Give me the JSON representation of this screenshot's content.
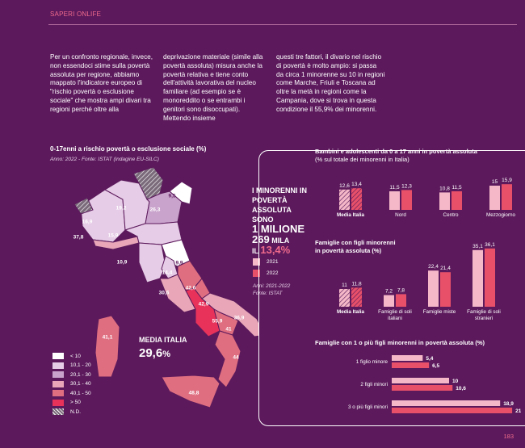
{
  "header": {
    "label": "SAPERI ONLIFE"
  },
  "intro": {
    "col1": "Per un confronto regionale, invece, non essendoci stime sulla povertà assoluta per regione, abbiamo mappato l'indicatore europeo di \"rischio povertà o esclusione sociale\" che mostra ampi divari tra regioni perché oltre alla",
    "col2": "deprivazione materiale (simile alla povertà assoluta) misura anche la povertà relativa e tiene conto dell'attività lavorativa del nucleo familiare (ad esempio se è monoreddito o se entrambi i genitori sono disoccupati). Mettendo insieme",
    "col3": "questi tre fattori, il divario nel rischio di povertà è molto ampio: si passa da circa 1 minorenne su 10 in regioni come Marche, Friuli e Toscana ad oltre la metà in regioni come la Campania, dove si trova in questa condizione il 55,9% dei minorenni."
  },
  "map": {
    "title": "0-17enni a rischio povertà o esclusione sociale (%)",
    "source": "Anno: 2022 - Fonte: ISTAT (indagine EU-SILC)",
    "media_label": "MEDIA ITALIA",
    "media_value": "29,6",
    "media_unit": "%",
    "region_values": [
      "9,5",
      "26,3",
      "19,2",
      "16,9",
      "37,8",
      "15,9",
      "10,9",
      "9,9",
      "14,4",
      "30,6",
      "42,6",
      "42,9",
      "55,9",
      "41",
      "36,9",
      "44",
      "41,1",
      "48,8"
    ],
    "colors": {
      "lt10": "#ffffff",
      "b10_20": "#e6cce6",
      "b20_30": "#c9a3cc",
      "b30_40": "#e8a6b8",
      "b40_50": "#df6e80",
      "gt50": "#e8325a",
      "nd": "#7a6a7a"
    }
  },
  "legend": [
    {
      "label": "< 10",
      "color": "#ffffff"
    },
    {
      "label": "10,1 - 20",
      "color": "#e6cce6"
    },
    {
      "label": "20,1 - 30",
      "color": "#c9a3cc"
    },
    {
      "label": "30,1 - 40",
      "color": "#e8a6b8"
    },
    {
      "label": "40,1 - 50",
      "color": "#df6e80"
    },
    {
      "label": "> 50",
      "color": "#e8325a"
    },
    {
      "label": "N.D.",
      "color": "#7a6a7a"
    }
  ],
  "callout": {
    "line1": "I MINORENNI IN",
    "line2": "POVERTÀ ASSOLUTA",
    "line3": "SONO",
    "line4_big": "1 MILIONE 269",
    "line4_small": "MILA",
    "line5": "IL",
    "line5_val": "13,4%",
    "year_2021": "2021",
    "year_2022": "2022",
    "source1": "Anni: 2021-2022",
    "source2": "Fonte: ISTAT"
  },
  "colors": {
    "y2021": "#f4b8c8",
    "y2022": "#e8506a"
  },
  "chart_data": [
    {
      "type": "bar",
      "title": "Bambini e adolescenti da 0 a 17 anni in povertà assoluta",
      "subtitle": "(% sul totale dei minorenni in Italia)",
      "categories": [
        "Media Italia",
        "Nord",
        "Centro",
        "Mezzogiorno"
      ],
      "series": [
        {
          "name": "2021",
          "values": [
            12.6,
            11.5,
            10.8,
            15.0
          ],
          "labels": [
            "12,6",
            "11,5",
            "10,8",
            "15"
          ]
        },
        {
          "name": "2022",
          "values": [
            13.4,
            12.3,
            11.5,
            15.9
          ],
          "labels": [
            "13,4",
            "12,3",
            "11,5",
            "15,9"
          ]
        }
      ]
    },
    {
      "type": "bar",
      "title": "Famiglie con figli minorenni",
      "subtitle": "in povertà assoluta (%)",
      "categories": [
        "Media Italia",
        "Famiglie di soli italiani",
        "Famiglie miste",
        "Famiglie di soli stranieri"
      ],
      "series": [
        {
          "name": "2021",
          "values": [
            11.0,
            7.2,
            22.4,
            35.1
          ],
          "labels": [
            "11",
            "7,2",
            "22,4",
            "35,1"
          ]
        },
        {
          "name": "2022",
          "values": [
            11.8,
            7.8,
            21.4,
            36.1
          ],
          "labels": [
            "11,8",
            "7,8",
            "21,4",
            "36,1"
          ]
        }
      ]
    },
    {
      "type": "bar",
      "orientation": "horizontal",
      "title": "Famiglie con 1 o più figli minorenni in povertà assoluta (%)",
      "categories": [
        "1 figlio minore",
        "2 figli minori",
        "3 o più figli minori"
      ],
      "series": [
        {
          "name": "2021",
          "values": [
            5.4,
            10.0,
            18.9
          ],
          "labels": [
            "5,4",
            "10",
            "18,9"
          ]
        },
        {
          "name": "2022",
          "values": [
            6.5,
            10.6,
            21.0
          ],
          "labels": [
            "6,5",
            "10,6",
            "21"
          ]
        }
      ]
    }
  ],
  "page_number": "183"
}
